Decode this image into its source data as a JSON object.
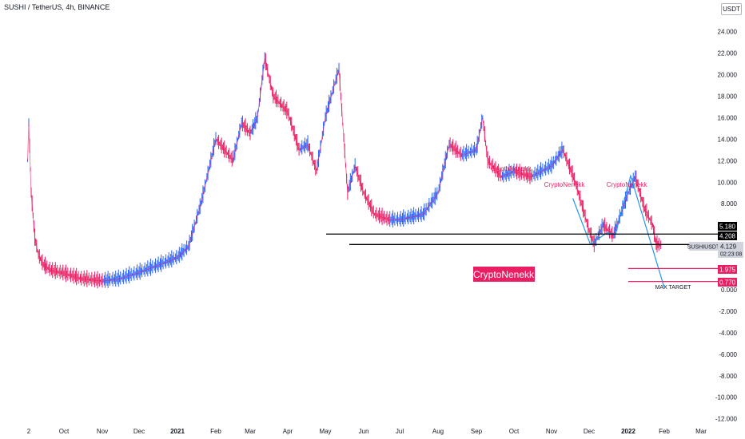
{
  "header": {
    "title": "SUSHI / TetherUS, 4h, BINANCE",
    "currency": "USDT"
  },
  "watermark": "CryptoNenekk",
  "annotations": {
    "pattern_labels": [
      "CryptoNenekk",
      "CryptoNenekk",
      "CryptoNenekk"
    ],
    "max_target": "MAX TARGET"
  },
  "price_tags": {
    "level_upper": "5.180",
    "level_lower": "4.208",
    "symbol": "SUSHIUSDT",
    "current_price": "4.129",
    "countdown": "02:23:08",
    "target_1": "1.975",
    "target_2": "0.770"
  },
  "colors": {
    "up_candle": "#2962ff",
    "down_candle": "#e91e63",
    "pattern_line": "#2196f3",
    "label_pink": "#e91e63",
    "level_line": "#000000"
  },
  "chart_data": {
    "type": "line",
    "title": "SUSHI / TetherUS, 4h, BINANCE",
    "xlabel": "",
    "ylabel": "",
    "y_ticks": [
      "24.000",
      "22.000",
      "20.000",
      "18.000",
      "16.000",
      "14.000",
      "12.000",
      "10.000",
      "8.000",
      "6.000",
      "4.000",
      "2.000",
      "0.000",
      "-2.000",
      "-4.000",
      "-6.000",
      "-8.000",
      "-10.000",
      "-12.000"
    ],
    "ylim": [
      -12.8,
      25
    ],
    "x_ticks": [
      "2",
      "Oct",
      "Nov",
      "Dec",
      "2021",
      "Feb",
      "Mar",
      "Apr",
      "May",
      "Jun",
      "Jul",
      "Aug",
      "Sep",
      "Oct",
      "Nov",
      "Dec",
      "2022",
      "Feb",
      "Mar"
    ],
    "x_tick_dates": [
      "2020-09-02",
      "2020-10-01",
      "2020-11-01",
      "2020-12-01",
      "2021-01-01",
      "2021-02-01",
      "2021-03-01",
      "2021-04-01",
      "2021-05-01",
      "2021-06-01",
      "2021-07-01",
      "2021-08-01",
      "2021-09-01",
      "2021-10-01",
      "2021-11-01",
      "2021-12-01",
      "2022-01-01",
      "2022-02-01",
      "2022-03-01"
    ],
    "series": [
      {
        "type": "candlestick-approx",
        "x": [
          "2020-09-01",
          "2020-09-02",
          "2020-09-04",
          "2020-09-07",
          "2020-09-10",
          "2020-09-14",
          "2020-09-20",
          "2020-10-01",
          "2020-10-15",
          "2020-11-01",
          "2020-11-15",
          "2020-12-01",
          "2020-12-15",
          "2021-01-01",
          "2021-01-10",
          "2021-01-20",
          "2021-02-01",
          "2021-02-08",
          "2021-02-15",
          "2021-02-22",
          "2021-03-01",
          "2021-03-07",
          "2021-03-13",
          "2021-03-20",
          "2021-04-01",
          "2021-04-10",
          "2021-04-17",
          "2021-04-24",
          "2021-05-01",
          "2021-05-07",
          "2021-05-12",
          "2021-05-19",
          "2021-05-25",
          "2021-06-01",
          "2021-06-10",
          "2021-06-22",
          "2021-07-01",
          "2021-07-20",
          "2021-08-01",
          "2021-08-10",
          "2021-08-20",
          "2021-09-01",
          "2021-09-06",
          "2021-09-10",
          "2021-09-21",
          "2021-10-01",
          "2021-10-15",
          "2021-11-01",
          "2021-11-10",
          "2021-11-20",
          "2021-12-01",
          "2021-12-05",
          "2021-12-12",
          "2021-12-20",
          "2022-01-01",
          "2022-01-07",
          "2022-01-15",
          "2022-01-22",
          "2022-01-25",
          "2022-01-29"
        ],
        "values": [
          12.0,
          15.5,
          9.0,
          4.8,
          3.2,
          2.3,
          1.8,
          1.5,
          1.0,
          0.8,
          1.0,
          1.6,
          2.2,
          3.0,
          4.0,
          8.0,
          14.0,
          13.0,
          12.0,
          15.5,
          14.5,
          16.0,
          21.5,
          18.0,
          16.5,
          13.0,
          13.5,
          11.0,
          16.0,
          18.5,
          20.5,
          9.0,
          11.5,
          9.0,
          7.0,
          6.5,
          6.5,
          7.0,
          9.0,
          13.5,
          12.5,
          13.0,
          16.0,
          12.0,
          10.5,
          11.0,
          10.5,
          11.5,
          13.0,
          10.0,
          5.5,
          4.2,
          6.0,
          5.0,
          9.0,
          10.5,
          7.5,
          6.0,
          4.2,
          4.13
        ]
      }
    ],
    "horizontal_levels": [
      5.18,
      4.208,
      1.975,
      0.77
    ],
    "pattern_line": {
      "x": [
        "2021-11-18",
        "2021-12-02",
        "2021-12-15",
        "2021-12-22",
        "2022-01-03",
        "2022-02-01"
      ],
      "y": [
        8.5,
        4.208,
        5.3,
        5.18,
        10.6,
        0.2
      ]
    },
    "grid": false,
    "legend": "none"
  }
}
